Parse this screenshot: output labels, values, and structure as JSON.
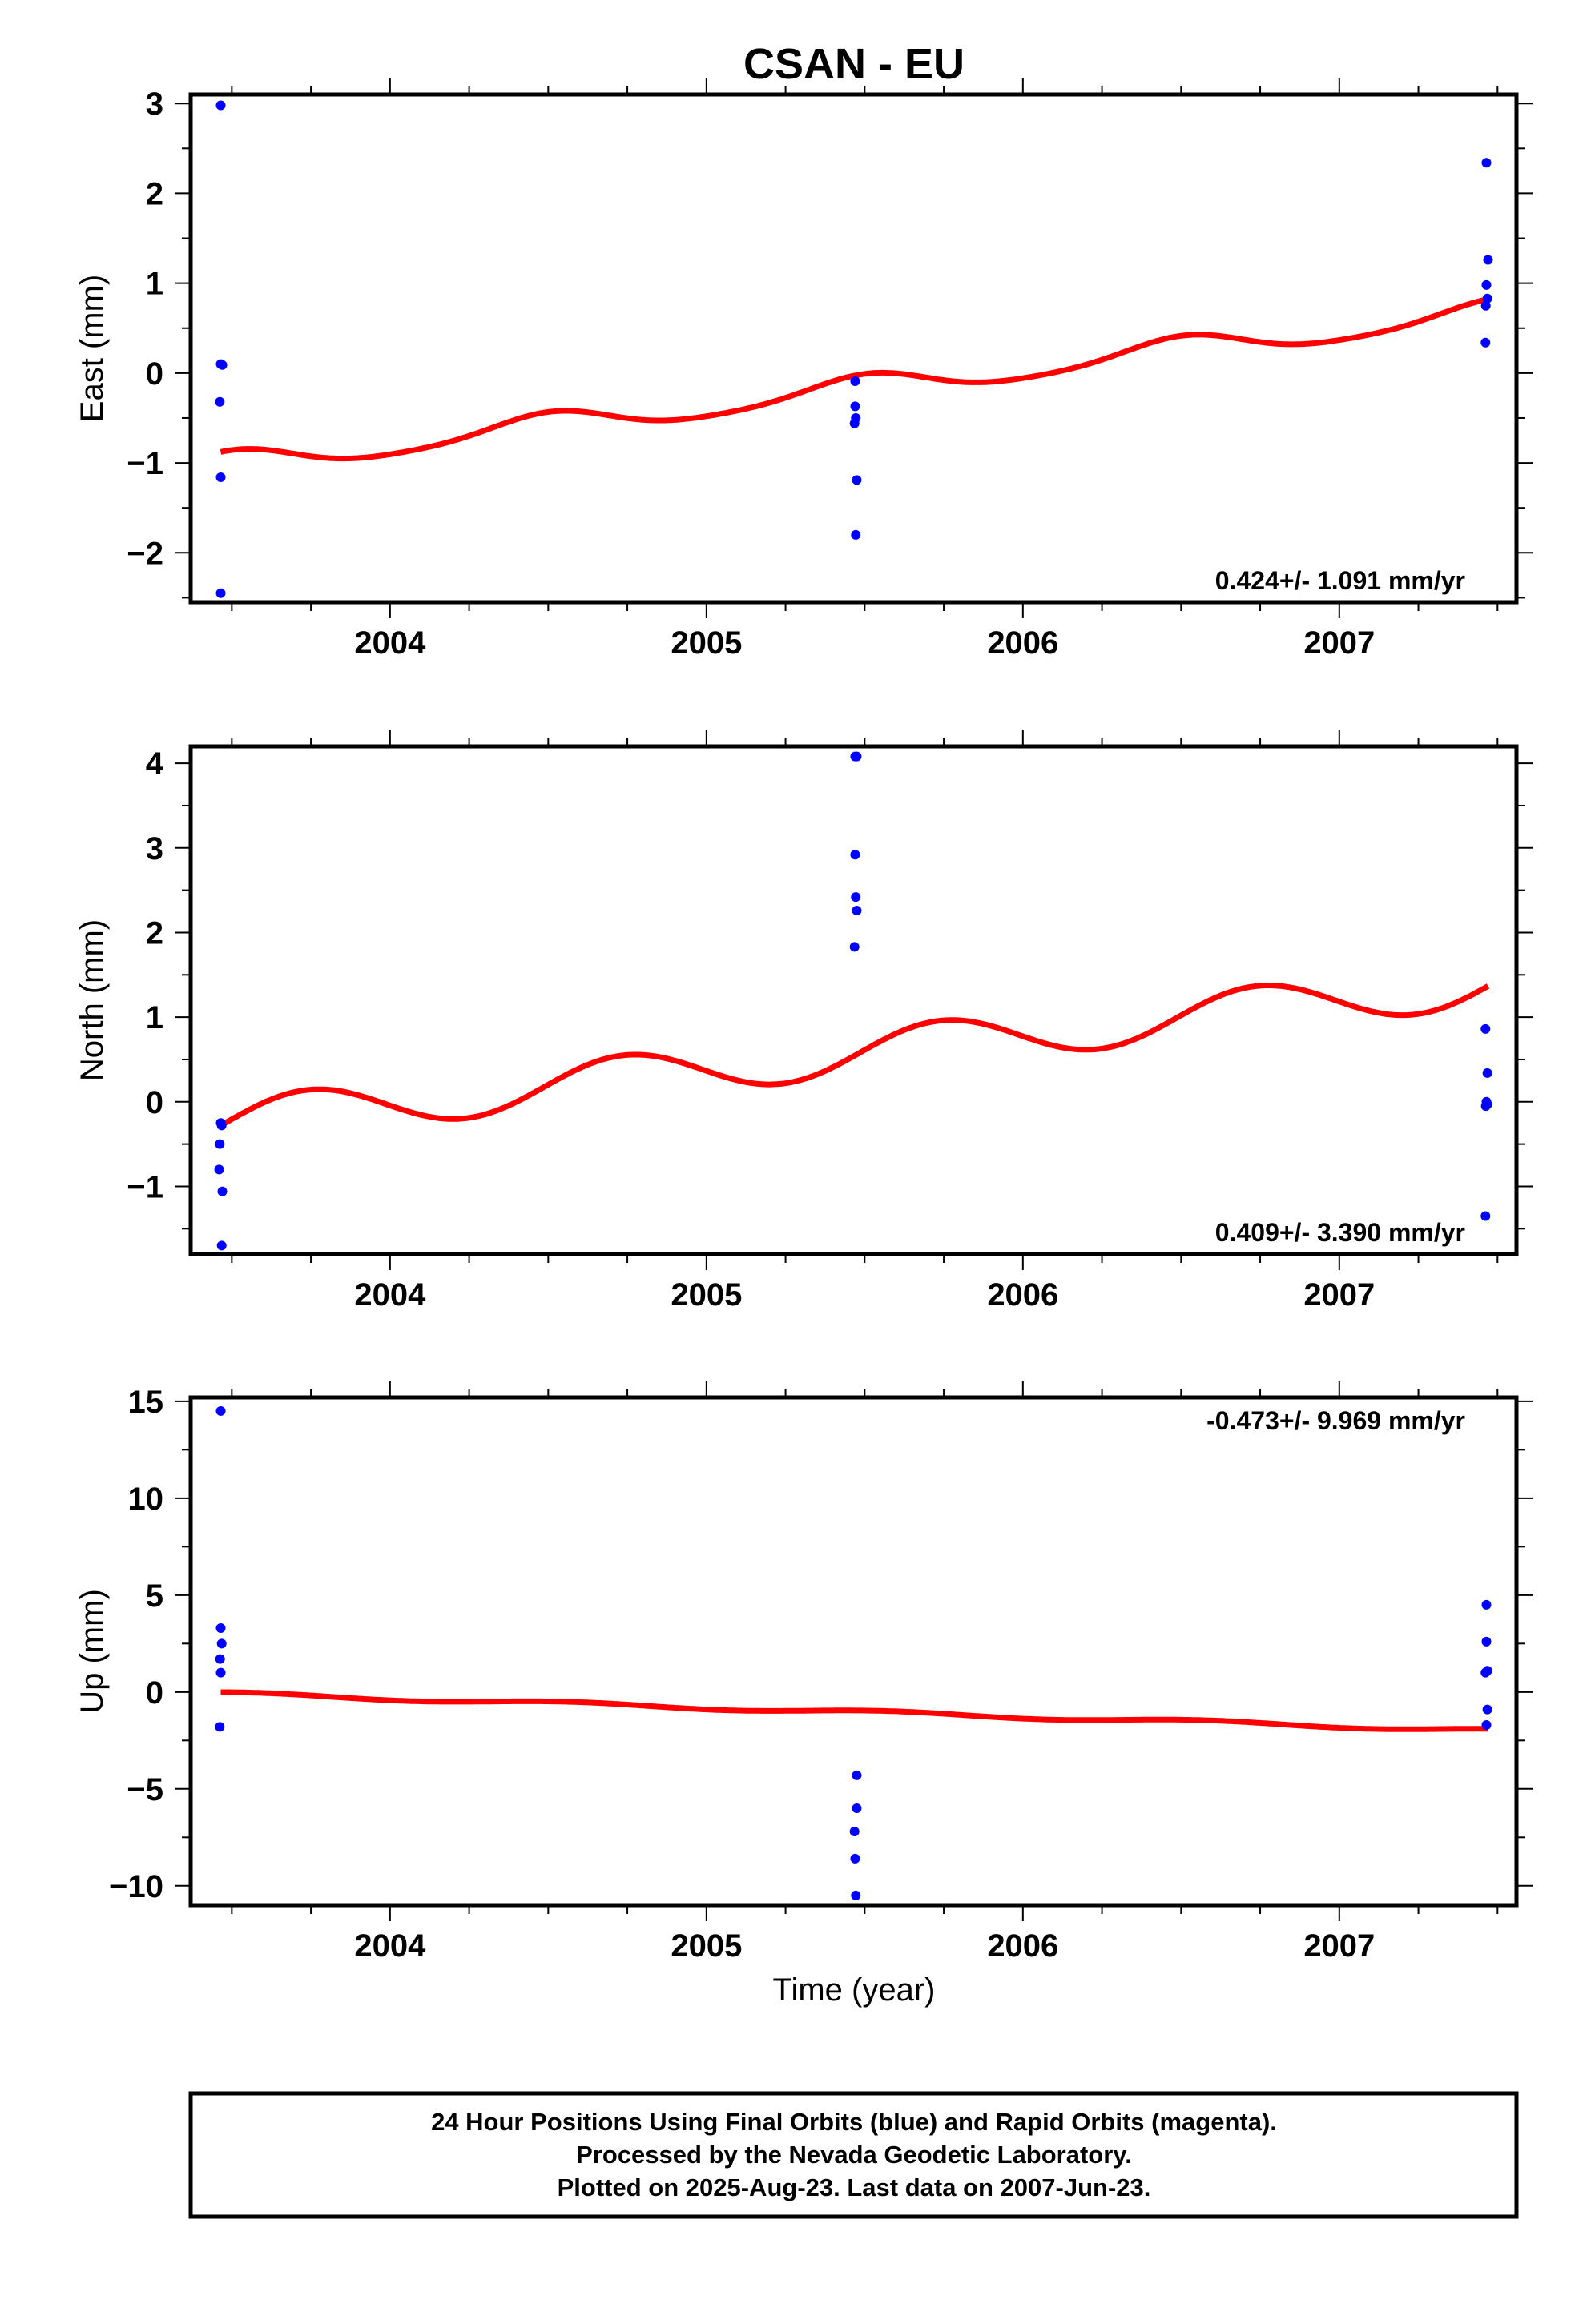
{
  "figure_title": "CSAN - EU",
  "x_axis_label": "Time (year)",
  "footer": {
    "line1": "24 Hour Positions Using Final Orbits (blue) and Rapid Orbits (magenta).",
    "line2": "Processed by the Nevada Geodetic Laboratory.",
    "line3": "Plotted on 2025-Aug-23. Last data on 2007-Jun-23."
  },
  "colors": {
    "data_points": "#0000ff",
    "model_line": "#ff0000",
    "frame": "#000000"
  },
  "chart_data": [
    {
      "type": "scatter",
      "ylabel": "East (mm)",
      "annotation": "0.424+/- 1.091 mm/yr",
      "annotation_position": "bottom-right",
      "xlim": [
        2003.37,
        2007.56
      ],
      "ylim": [
        -2.55,
        3.1
      ],
      "xticks": [
        2004,
        2005,
        2006,
        2007
      ],
      "xtick_labels": [
        "2004",
        "2005",
        "2006",
        "2007"
      ],
      "yticks": [
        -2,
        -1,
        0,
        1,
        2,
        3
      ],
      "ytick_labels": [
        "−2",
        "−1",
        "0",
        "1",
        "2",
        "3"
      ],
      "points": [
        [
          2003.465,
          2.98
        ],
        [
          2003.465,
          0.1
        ],
        [
          2003.47,
          0.09
        ],
        [
          2003.462,
          -0.32
        ],
        [
          2003.465,
          -1.16
        ],
        [
          2003.465,
          -2.45
        ],
        [
          2005.47,
          -0.09
        ],
        [
          2005.47,
          -0.37
        ],
        [
          2005.472,
          -0.5
        ],
        [
          2005.468,
          -0.56
        ],
        [
          2005.475,
          -1.19
        ],
        [
          2005.472,
          -1.8
        ],
        [
          2007.465,
          2.34
        ],
        [
          2007.47,
          1.26
        ],
        [
          2007.465,
          0.98
        ],
        [
          2007.468,
          0.83
        ],
        [
          2007.463,
          0.75
        ],
        [
          2007.462,
          0.34
        ]
      ],
      "model": {
        "intercept": -0.2,
        "slope": 0.424,
        "t0": 2005.4,
        "amp1": 0.13,
        "phase1": 1.0,
        "amp2": 0.02,
        "phase2": 0.0,
        "x_start": 2003.465,
        "x_end": 2007.47
      }
    },
    {
      "type": "scatter",
      "ylabel": "North (mm)",
      "annotation": "0.409+/- 3.390 mm/yr",
      "annotation_position": "bottom-right",
      "xlim": [
        2003.37,
        2007.56
      ],
      "ylim": [
        -1.8,
        4.2
      ],
      "xticks": [
        2004,
        2005,
        2006,
        2007
      ],
      "xtick_labels": [
        "2004",
        "2005",
        "2006",
        "2007"
      ],
      "yticks": [
        -1,
        0,
        1,
        2,
        3,
        4
      ],
      "ytick_labels": [
        "−1",
        "0",
        "1",
        "2",
        "3",
        "4"
      ],
      "points": [
        [
          2003.465,
          -0.25
        ],
        [
          2003.468,
          -0.28
        ],
        [
          2003.462,
          -0.5
        ],
        [
          2003.46,
          -0.8
        ],
        [
          2003.47,
          -1.06
        ],
        [
          2003.468,
          -1.7
        ],
        [
          2005.47,
          4.08
        ],
        [
          2005.475,
          4.08
        ],
        [
          2005.47,
          2.92
        ],
        [
          2005.472,
          2.42
        ],
        [
          2005.475,
          2.26
        ],
        [
          2005.468,
          1.83
        ],
        [
          2007.462,
          0.86
        ],
        [
          2007.468,
          0.34
        ],
        [
          2007.465,
          0.0
        ],
        [
          2007.468,
          -0.03
        ],
        [
          2007.463,
          -0.05
        ],
        [
          2007.462,
          -1.35
        ]
      ],
      "model": {
        "intercept": 0.55,
        "slope": 0.409,
        "t0": 2005.4,
        "amp1": 0.27,
        "phase1": -0.55,
        "amp2": 0.0,
        "phase2": 0.0,
        "x_start": 2003.465,
        "x_end": 2007.47
      }
    },
    {
      "type": "scatter",
      "ylabel": "Up (mm)",
      "annotation": "-0.473+/- 9.969 mm/yr",
      "annotation_position": "top-right",
      "xlim": [
        2003.37,
        2007.56
      ],
      "ylim": [
        -11.0,
        15.2
      ],
      "xticks": [
        2004,
        2005,
        2006,
        2007
      ],
      "xtick_labels": [
        "2004",
        "2005",
        "2006",
        "2007"
      ],
      "yticks": [
        -10,
        -5,
        0,
        5,
        10,
        15
      ],
      "ytick_labels": [
        "−10",
        "−5",
        "0",
        "5",
        "10",
        "15"
      ],
      "points": [
        [
          2003.465,
          14.5
        ],
        [
          2003.465,
          3.3
        ],
        [
          2003.468,
          2.5
        ],
        [
          2003.463,
          1.7
        ],
        [
          2003.465,
          1.0
        ],
        [
          2003.462,
          -1.8
        ],
        [
          2005.475,
          -4.3
        ],
        [
          2005.475,
          -6.0
        ],
        [
          2005.468,
          -7.2
        ],
        [
          2005.47,
          -8.6
        ],
        [
          2005.472,
          -10.5
        ],
        [
          2007.465,
          4.5
        ],
        [
          2007.465,
          2.6
        ],
        [
          2007.468,
          1.1
        ],
        [
          2007.462,
          1.0
        ],
        [
          2007.468,
          -0.9
        ],
        [
          2007.465,
          -1.7
        ]
      ],
      "model": {
        "intercept": -1.0,
        "slope": -0.473,
        "t0": 2005.4,
        "amp1": 0.1,
        "phase1": 0.5,
        "amp2": 0.0,
        "phase2": 0.0,
        "x_start": 2003.465,
        "x_end": 2007.47
      }
    }
  ]
}
